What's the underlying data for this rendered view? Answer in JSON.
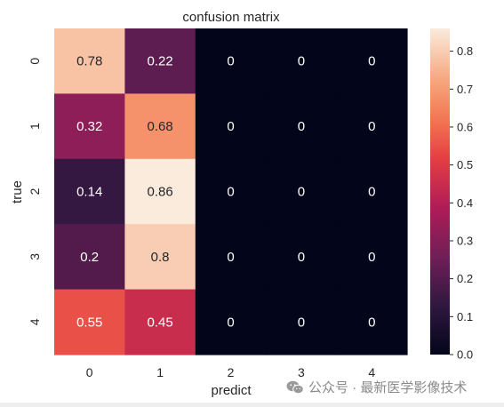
{
  "chart_data": {
    "type": "heatmap",
    "title": "confusion matrix",
    "xlabel": "predict",
    "ylabel": "true",
    "x_categories": [
      "0",
      "1",
      "2",
      "3",
      "4"
    ],
    "y_categories": [
      "0",
      "1",
      "2",
      "3",
      "4"
    ],
    "values": [
      [
        0.78,
        0.22,
        0,
        0,
        0
      ],
      [
        0.32,
        0.68,
        0,
        0,
        0
      ],
      [
        0.14,
        0.86,
        0,
        0,
        0
      ],
      [
        0.2,
        0.8,
        0,
        0,
        0
      ],
      [
        0.55,
        0.45,
        0,
        0,
        0
      ]
    ],
    "colormap": "rocket",
    "colorbar": {
      "range": [
        0,
        0.86
      ],
      "ticks": [
        "0.0",
        "0.1",
        "0.2",
        "0.3",
        "0.4",
        "0.5",
        "0.6",
        "0.7",
        "0.8"
      ]
    },
    "grid": false
  },
  "watermark": {
    "text": "公众号 · 最新医学影像技术",
    "icon": "wechat-icon"
  }
}
